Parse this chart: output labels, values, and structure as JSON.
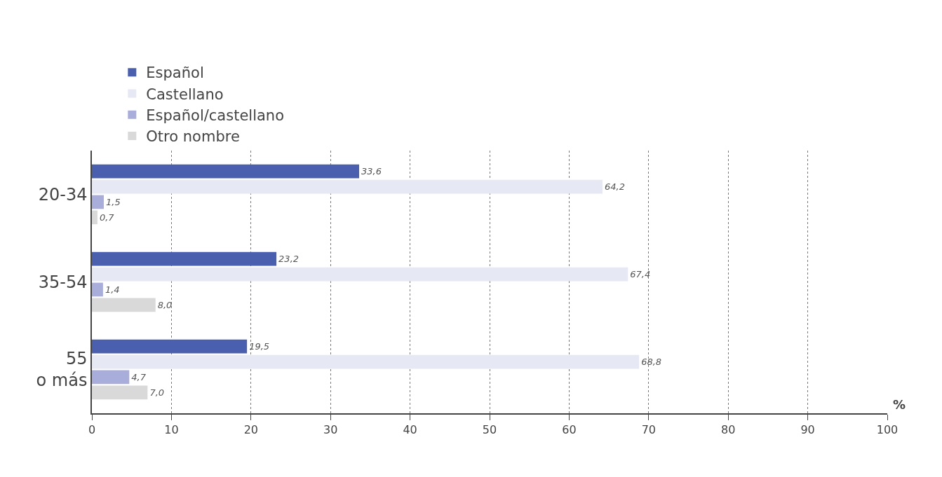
{
  "chart_data": {
    "type": "bar",
    "orientation": "horizontal",
    "xlabel": "%",
    "categories": [
      "20-34",
      "35-54",
      "55\no más"
    ],
    "series": [
      {
        "name": "Español",
        "color": "#4a5fad",
        "values": [
          33.6,
          23.2,
          19.5
        ],
        "value_labels": [
          "33,6",
          "23,2",
          "19,5"
        ]
      },
      {
        "name": "Castellano",
        "color": "#e6e8f4",
        "values": [
          64.2,
          67.4,
          68.8
        ],
        "value_labels": [
          "64,2",
          "67,4",
          "68,8"
        ]
      },
      {
        "name": "Español/castellano",
        "color": "#a8aed9",
        "values": [
          1.5,
          1.4,
          4.7
        ],
        "value_labels": [
          "1,5",
          "1,4",
          "4,7"
        ]
      },
      {
        "name": "Otro nombre",
        "color": "#d9d9d9",
        "values": [
          0.7,
          8.0,
          7.0
        ],
        "value_labels": [
          "0,7",
          "8,0",
          "7,0"
        ]
      }
    ],
    "xlim": [
      0,
      100
    ],
    "xticks": [
      0,
      10,
      20,
      30,
      40,
      50,
      60,
      70,
      80,
      90,
      100
    ],
    "grid": "x",
    "legend": "top left"
  }
}
